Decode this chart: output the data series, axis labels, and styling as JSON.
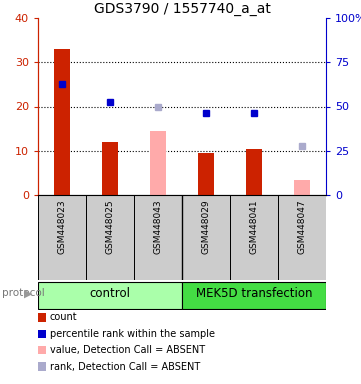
{
  "title": "GDS3790 / 1557740_a_at",
  "samples": [
    "GSM448023",
    "GSM448025",
    "GSM448043",
    "GSM448029",
    "GSM448041",
    "GSM448047"
  ],
  "group_labels": [
    "control",
    "MEK5D transfection"
  ],
  "bar_values": [
    33.0,
    12.0,
    null,
    9.5,
    10.5,
    null
  ],
  "bar_absent_values": [
    null,
    null,
    14.5,
    null,
    null,
    3.5
  ],
  "dot_values": [
    25.0,
    21.0,
    null,
    18.5,
    18.5,
    null
  ],
  "dot_absent_values": [
    null,
    null,
    20.0,
    null,
    null,
    11.0
  ],
  "bar_color": "#cc2200",
  "bar_absent_color": "#ffaaaa",
  "dot_color": "#0000cc",
  "dot_absent_color": "#aaaacc",
  "ylim_left": [
    0,
    40
  ],
  "ylim_right": [
    0,
    100
  ],
  "yticks_left": [
    0,
    10,
    20,
    30,
    40
  ],
  "yticks_right": [
    0,
    25,
    50,
    75,
    100
  ],
  "ytick_labels_left": [
    "0",
    "10",
    "20",
    "30",
    "40"
  ],
  "ytick_labels_right": [
    "0",
    "25",
    "50",
    "75",
    "100%"
  ],
  "left_axis_color": "#cc2200",
  "right_axis_color": "#0000cc",
  "hgrid_vals": [
    10,
    20,
    30
  ],
  "bar_width": 0.35,
  "dot_size": 4,
  "control_color": "#aaffaa",
  "mek5d_color": "#44dd44",
  "sample_box_color": "#cccccc",
  "protocol_label": "protocol",
  "legend_items": [
    {
      "label": "count",
      "color": "#cc2200"
    },
    {
      "label": "percentile rank within the sample",
      "color": "#0000cc"
    },
    {
      "label": "value, Detection Call = ABSENT",
      "color": "#ffaaaa"
    },
    {
      "label": "rank, Detection Call = ABSENT",
      "color": "#aaaacc"
    }
  ]
}
